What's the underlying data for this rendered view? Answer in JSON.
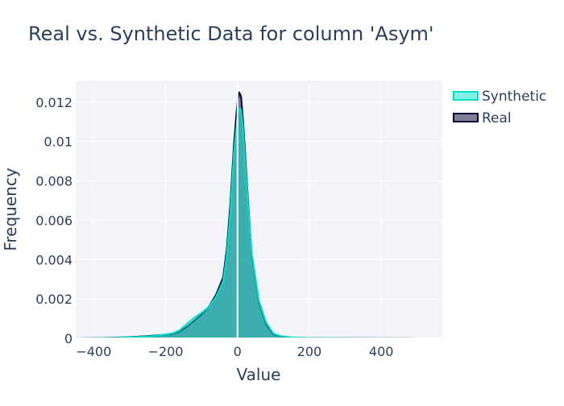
{
  "chart_data": {
    "type": "area",
    "title": "Real vs. Synthetic Data for column 'Asym'",
    "xlabel": "Value",
    "ylabel": "Frequency",
    "xlim": [
      -450,
      570
    ],
    "ylim": [
      0,
      0.0131
    ],
    "grid": true,
    "legend_position": "top-right",
    "x_ticks": [
      -400,
      -200,
      0,
      200,
      400
    ],
    "x_tick_labels": [
      "−400",
      "−200",
      "0",
      "200",
      "400"
    ],
    "y_ticks": [
      0,
      0.002,
      0.004,
      0.006,
      0.008,
      0.01,
      0.012
    ],
    "y_tick_labels": [
      "0",
      "0.002",
      "0.004",
      "0.006",
      "0.008",
      "0.01",
      "0.012"
    ],
    "series": [
      {
        "name": "Real",
        "color": "#000036",
        "fill": "rgba(0, 0, 54, 0.5)",
        "x": [
          -450,
          -400,
          -350,
          -300,
          -250,
          -220,
          -200,
          -180,
          -160,
          -140,
          -120,
          -100,
          -80,
          -60,
          -40,
          -30,
          -20,
          -10,
          0,
          5,
          10,
          15,
          20,
          30,
          40,
          60,
          80,
          100,
          120,
          150,
          200,
          300,
          400,
          500,
          570
        ],
        "y": [
          0,
          1e-05,
          3e-05,
          6e-05,
          0.00012,
          0.00016,
          0.00018,
          0.00022,
          0.00035,
          0.0006,
          0.0009,
          0.0012,
          0.0016,
          0.0022,
          0.0031,
          0.0045,
          0.0068,
          0.0098,
          0.0121,
          0.0125,
          0.0123,
          0.0112,
          0.0098,
          0.0068,
          0.0042,
          0.0018,
          0.0007,
          0.0002,
          0.0001,
          4e-05,
          2e-05,
          1e-05,
          5e-06,
          2e-06,
          1e-06
        ]
      },
      {
        "name": "Synthetic",
        "color": "#01e0c9",
        "fill": "rgba(1, 224, 201, 0.5)",
        "x": [
          -450,
          -400,
          -350,
          -300,
          -250,
          -220,
          -200,
          -180,
          -160,
          -140,
          -120,
          -100,
          -80,
          -60,
          -40,
          -30,
          -20,
          -10,
          0,
          5,
          10,
          15,
          20,
          30,
          40,
          60,
          80,
          100,
          120,
          150,
          200,
          300,
          400,
          460,
          500
        ],
        "y": [
          0,
          1e-05,
          2e-05,
          5e-05,
          0.0001,
          0.00015,
          0.0002,
          0.00026,
          0.00042,
          0.00075,
          0.00105,
          0.0013,
          0.0016,
          0.0021,
          0.0029,
          0.0042,
          0.0064,
          0.0094,
          0.0113,
          0.0117,
          0.0116,
          0.0108,
          0.0094,
          0.0066,
          0.0043,
          0.0019,
          0.0008,
          0.00025,
          0.00012,
          5e-05,
          2e-05,
          1e-05,
          5e-06,
          0.0,
          0.0
        ]
      }
    ]
  }
}
